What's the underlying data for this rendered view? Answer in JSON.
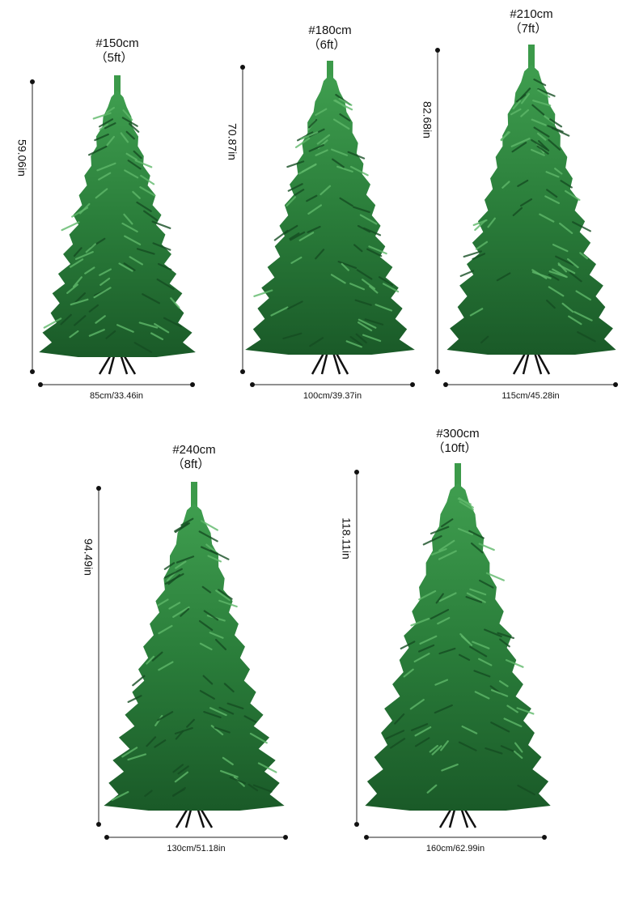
{
  "items": [
    {
      "title": "#150cm",
      "subtitle": "（5ft）",
      "height": "59.06in",
      "width": "85cm/33.46in"
    },
    {
      "title": "#180cm",
      "subtitle": "（6ft）",
      "height": "70.87in",
      "width": "100cm/39.37in"
    },
    {
      "title": "#210cm",
      "subtitle": "（7ft）",
      "height": "82.68in",
      "width": "115cm/45.28in"
    },
    {
      "title": "#240cm",
      "subtitle": "（8ft）",
      "height": "94.49in",
      "width": "130cm/51.18in"
    },
    {
      "title": "#300cm",
      "subtitle": "（10ft）",
      "height": "118.11in",
      "width": "160cm/62.99in"
    }
  ]
}
